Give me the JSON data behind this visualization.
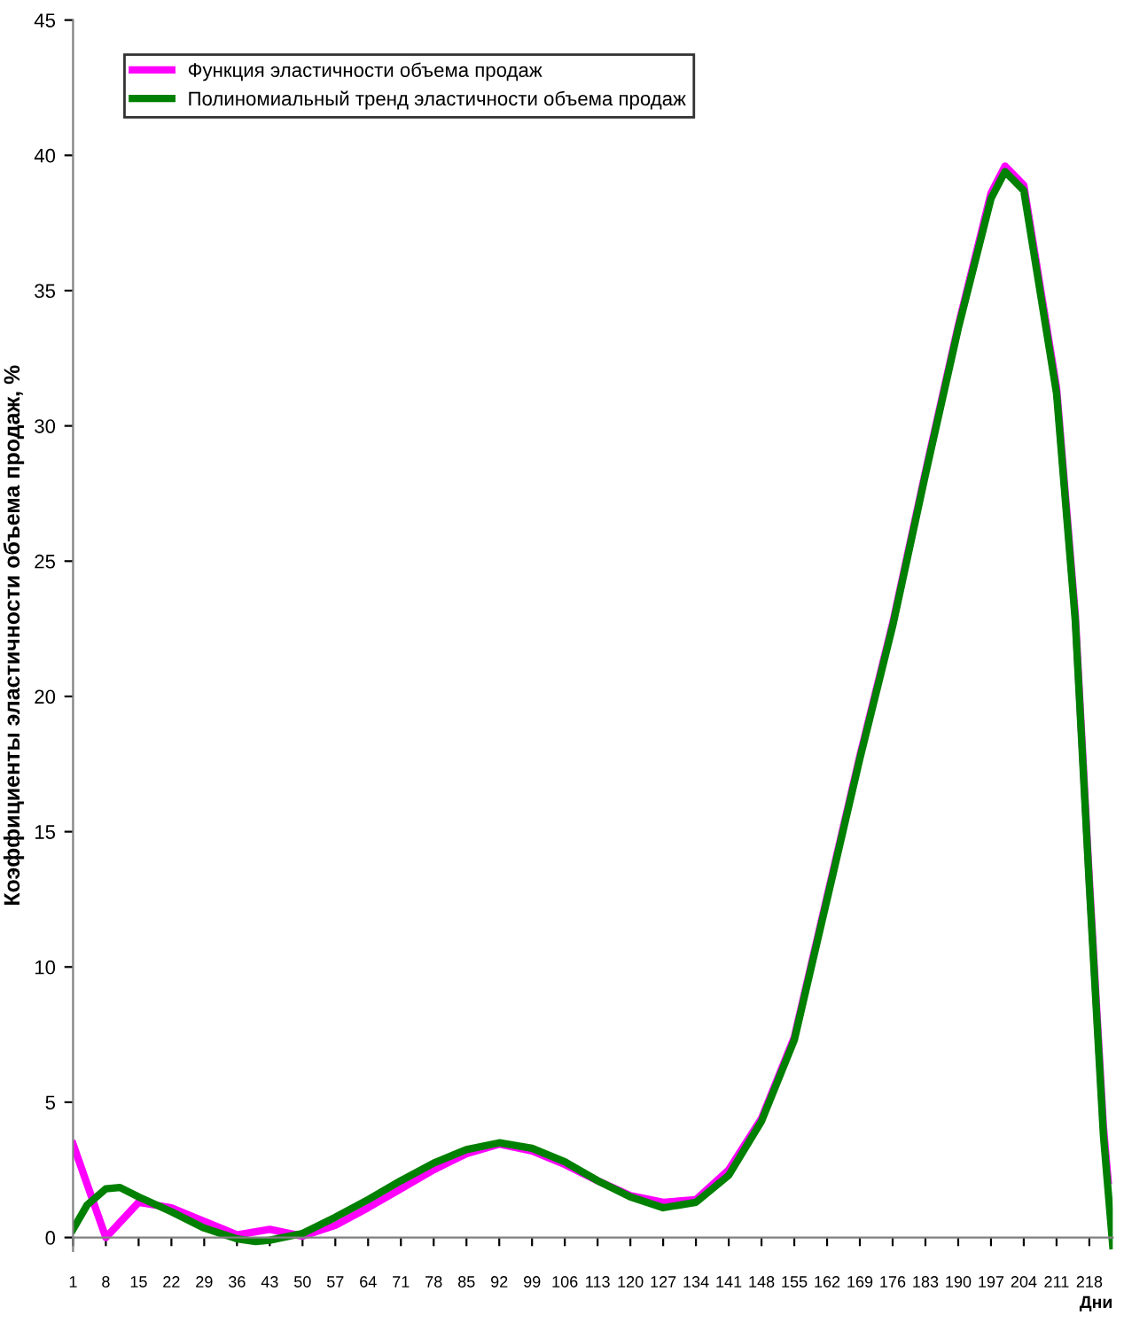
{
  "chart_data": {
    "type": "line",
    "ylabel": "Коэффициенты эластичности объема продаж, %",
    "xlabel": "Дни",
    "xlim": [
      1,
      223
    ],
    "ylim": [
      -0.5,
      45
    ],
    "xticks": [
      1,
      8,
      15,
      22,
      29,
      36,
      43,
      50,
      57,
      64,
      71,
      78,
      85,
      92,
      99,
      106,
      113,
      120,
      127,
      134,
      141,
      148,
      155,
      162,
      169,
      176,
      183,
      190,
      197,
      204,
      211,
      218
    ],
    "yticks": [
      0,
      5,
      10,
      15,
      20,
      25,
      30,
      35,
      40,
      45
    ],
    "grid": false,
    "legend": "top left",
    "marker": "none",
    "line_style": "solid",
    "series": [
      {
        "name": "Функция эластичности объема продаж",
        "color": "#ff00ff",
        "x": [
          1,
          8,
          15,
          22,
          29,
          36,
          43,
          50,
          57,
          64,
          71,
          78,
          85,
          92,
          99,
          106,
          113,
          120,
          127,
          134,
          141,
          148,
          155,
          162,
          169,
          176,
          183,
          190,
          197,
          200,
          204,
          211,
          215,
          218,
          221,
          222
        ],
        "values": [
          3.45,
          0,
          1.3,
          1.1,
          0.6,
          0.1,
          0.3,
          0.05,
          0.45,
          1.1,
          1.8,
          2.5,
          3.1,
          3.45,
          3.2,
          2.7,
          2.1,
          1.55,
          1.3,
          1.4,
          2.5,
          4.4,
          7.4,
          12.6,
          17.8,
          22.7,
          28.3,
          33.7,
          38.6,
          39.6,
          38.9,
          31.4,
          23,
          13.2,
          4.1,
          2.1
        ]
      },
      {
        "name": "Полиномиальный тренд эластичности объема продаж",
        "color": "#008000",
        "x": [
          1,
          4,
          8,
          11,
          15,
          22,
          29,
          36,
          40,
          43,
          50,
          57,
          64,
          71,
          78,
          85,
          92,
          99,
          106,
          113,
          120,
          127,
          134,
          141,
          148,
          155,
          162,
          169,
          176,
          183,
          190,
          197,
          200,
          204,
          211,
          215,
          218,
          221,
          223
        ],
        "values": [
          0.3,
          1.2,
          1.8,
          1.85,
          1.5,
          0.95,
          0.35,
          -0.05,
          -0.15,
          -0.1,
          0.15,
          0.75,
          1.4,
          2.1,
          2.75,
          3.25,
          3.5,
          3.3,
          2.8,
          2.1,
          1.5,
          1.1,
          1.3,
          2.3,
          4.3,
          7.3,
          12.5,
          17.7,
          22.6,
          28.2,
          33.6,
          38.4,
          39.4,
          38.7,
          31.2,
          22.8,
          13.0,
          3.8,
          -0.3
        ]
      }
    ]
  }
}
